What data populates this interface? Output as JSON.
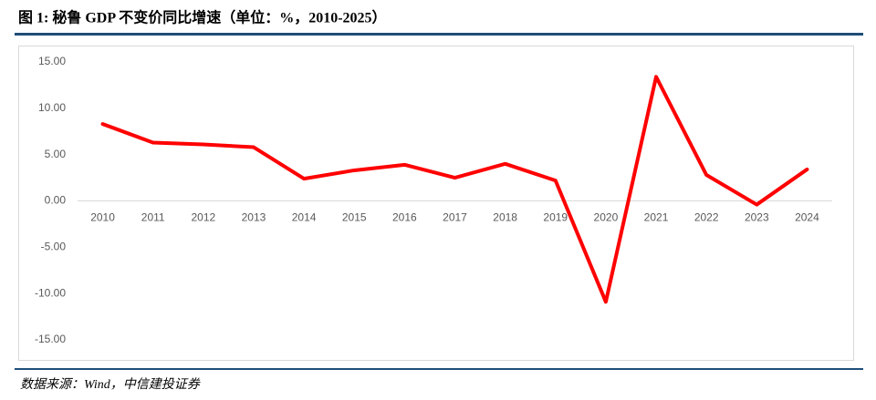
{
  "chart_data": {
    "type": "line",
    "title": "图 1: 秘鲁 GDP 不变价同比增速（单位：%，2010-2025）",
    "source": "数据来源：Wind，中信建投证券",
    "categories": [
      "2010",
      "2011",
      "2012",
      "2013",
      "2014",
      "2015",
      "2016",
      "2017",
      "2018",
      "2019",
      "2020",
      "2021",
      "2022",
      "2023",
      "2024"
    ],
    "values": [
      8.3,
      6.3,
      6.1,
      5.8,
      2.4,
      3.3,
      3.9,
      2.5,
      4.0,
      2.2,
      -10.9,
      13.4,
      2.8,
      -0.4,
      3.4
    ],
    "color": "#ff0000",
    "ylim": [
      -15,
      15
    ],
    "yticks": [
      {
        "value": -15,
        "label": "-15.00"
      },
      {
        "value": -10,
        "label": "-10.00"
      },
      {
        "value": -5,
        "label": "-5.00"
      },
      {
        "value": 0,
        "label": "0.00"
      },
      {
        "value": 5,
        "label": "5.00"
      },
      {
        "value": 10,
        "label": "10.00"
      },
      {
        "value": 15,
        "label": "15.00"
      }
    ],
    "grid": false
  }
}
